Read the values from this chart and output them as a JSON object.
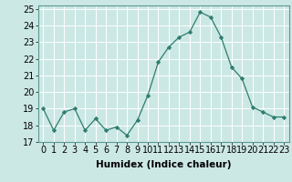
{
  "x": [
    0,
    1,
    2,
    3,
    4,
    5,
    6,
    7,
    8,
    9,
    10,
    11,
    12,
    13,
    14,
    15,
    16,
    17,
    18,
    19,
    20,
    21,
    22,
    23
  ],
  "y": [
    19.0,
    17.7,
    18.8,
    19.0,
    17.7,
    18.4,
    17.7,
    17.9,
    17.4,
    18.3,
    19.8,
    21.8,
    22.7,
    23.3,
    23.6,
    24.8,
    24.5,
    23.3,
    21.5,
    20.8,
    19.1,
    18.8,
    18.5,
    18.5
  ],
  "line_color": "#2e7d6e",
  "marker": "D",
  "marker_size": 2.2,
  "bg_color": "#cce8e5",
  "grid_color": "#ffffff",
  "xlabel": "Humidex (Indice chaleur)",
  "ylabel_ticks": [
    17,
    18,
    19,
    20,
    21,
    22,
    23,
    24,
    25
  ],
  "xlim": [
    -0.5,
    23.5
  ],
  "ylim": [
    17,
    25.2
  ],
  "label_fontsize": 7.5,
  "tick_fontsize": 7
}
